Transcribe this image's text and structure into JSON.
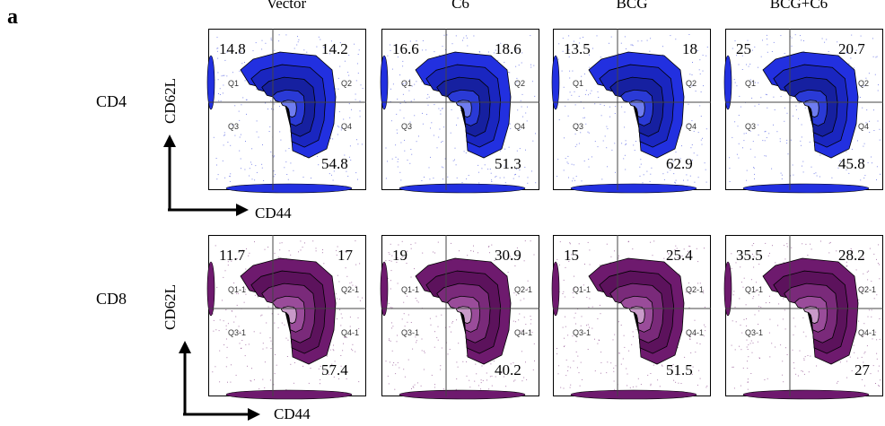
{
  "panel_letter": "a",
  "columns": [
    "Vector",
    "C6",
    "BCG",
    "BCG+C6"
  ],
  "rows": [
    {
      "label": "CD4",
      "y_axis": "CD62L",
      "x_axis": "CD44",
      "color": "#1f2fd8",
      "plots": [
        {
          "q1": "14.8",
          "q2": "14.2",
          "q4": "54.8",
          "quadrants": [
            "Q1",
            "Q2",
            "Q3",
            "Q4"
          ]
        },
        {
          "q1": "16.6",
          "q2": "18.6",
          "q4": "51.3",
          "quadrants": [
            "Q1",
            "Q2",
            "Q3",
            "Q4"
          ]
        },
        {
          "q1": "13.5",
          "q2": "18",
          "q4": "62.9",
          "quadrants": [
            "Q1",
            "Q2",
            "Q3",
            "Q4"
          ]
        },
        {
          "q1": "25",
          "q2": "20.7",
          "q4": "45.8",
          "quadrants": [
            "Q1",
            "Q2",
            "Q3",
            "Q4"
          ]
        }
      ]
    },
    {
      "label": "CD8",
      "y_axis": "CD62L",
      "x_axis": "CD44",
      "color": "#6e1a6e",
      "plots": [
        {
          "q1": "11.7",
          "q2": "17",
          "q4": "57.4",
          "quadrants": [
            "Q1-1",
            "Q2-1",
            "Q3-1",
            "Q4-1"
          ]
        },
        {
          "q1": "19",
          "q2": "30.9",
          "q4": "40.2",
          "quadrants": [
            "Q1-1",
            "Q2-1",
            "Q3-1",
            "Q4-1"
          ]
        },
        {
          "q1": "15",
          "q2": "25.4",
          "q4": "51.5",
          "quadrants": [
            "Q1-1",
            "Q2-1",
            "Q3-1",
            "Q4-1"
          ]
        },
        {
          "q1": "35.5",
          "q2": "28.2",
          "q4": "27",
          "quadrants": [
            "Q1-1",
            "Q2-1",
            "Q3-1",
            "Q4-1"
          ]
        }
      ]
    }
  ]
}
